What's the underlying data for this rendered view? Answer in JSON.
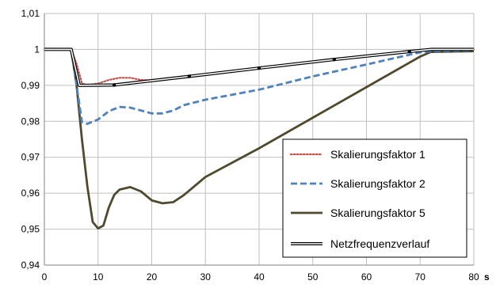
{
  "chart_data": {
    "type": "line",
    "title": "",
    "xlabel": "",
    "ylabel": "",
    "x_unit": "s",
    "xlim": [
      0,
      80
    ],
    "ylim": [
      0.94,
      1.01
    ],
    "x_ticks": [
      "0",
      "10",
      "20",
      "30",
      "40",
      "50",
      "60",
      "70",
      "80"
    ],
    "y_ticks": [
      "0,94",
      "0,95",
      "0,96",
      "0,97",
      "0,98",
      "0,99",
      "1",
      "1,01"
    ],
    "grid": true,
    "legend_position": "lower-right",
    "series": [
      {
        "name": "Skalierungsfaktor 1",
        "style": "dotted",
        "color": "#c0504d",
        "points": [
          [
            0,
            1.0
          ],
          [
            5,
            1.0
          ],
          [
            6,
            0.996
          ],
          [
            7,
            0.9905
          ],
          [
            8,
            0.9901
          ],
          [
            10,
            0.9905
          ],
          [
            12,
            0.9915
          ],
          [
            14,
            0.9921
          ],
          [
            16,
            0.9921
          ],
          [
            18,
            0.9915
          ],
          [
            20,
            0.9914
          ],
          [
            25,
            0.992
          ],
          [
            30,
            0.9932
          ],
          [
            40,
            0.995
          ],
          [
            50,
            0.9967
          ],
          [
            60,
            0.9983
          ],
          [
            70,
            0.9998
          ],
          [
            72,
            1.0
          ],
          [
            80,
            1.0
          ]
        ]
      },
      {
        "name": "Skalierungsfaktor 2",
        "style": "dashed",
        "color": "#4f81bd",
        "points": [
          [
            0,
            1.0
          ],
          [
            5,
            1.0
          ],
          [
            6,
            0.99
          ],
          [
            7,
            0.9798
          ],
          [
            8,
            0.9793
          ],
          [
            10,
            0.9805
          ],
          [
            12,
            0.9828
          ],
          [
            14,
            0.984
          ],
          [
            16,
            0.9838
          ],
          [
            18,
            0.983
          ],
          [
            20,
            0.9822
          ],
          [
            22,
            0.9822
          ],
          [
            24,
            0.983
          ],
          [
            26,
            0.9845
          ],
          [
            30,
            0.986
          ],
          [
            40,
            0.9888
          ],
          [
            50,
            0.9925
          ],
          [
            60,
            0.9958
          ],
          [
            70,
            0.9992
          ],
          [
            72,
            0.9995
          ],
          [
            80,
            0.9997
          ]
        ]
      },
      {
        "name": "Skalierungsfaktor 5",
        "style": "solid",
        "color": "#4f4a2e",
        "points": [
          [
            0,
            1.0
          ],
          [
            5,
            1.0
          ],
          [
            6,
            0.99
          ],
          [
            7,
            0.975
          ],
          [
            8,
            0.962
          ],
          [
            9,
            0.952
          ],
          [
            10,
            0.9502
          ],
          [
            11,
            0.951
          ],
          [
            12,
            0.956
          ],
          [
            13,
            0.9595
          ],
          [
            14,
            0.961
          ],
          [
            16,
            0.9617
          ],
          [
            18,
            0.9605
          ],
          [
            20,
            0.958
          ],
          [
            22,
            0.9572
          ],
          [
            24,
            0.9575
          ],
          [
            26,
            0.9595
          ],
          [
            30,
            0.9645
          ],
          [
            35,
            0.9685
          ],
          [
            40,
            0.9725
          ],
          [
            50,
            0.981
          ],
          [
            60,
            0.9895
          ],
          [
            70,
            0.998
          ],
          [
            72,
            0.9993
          ],
          [
            80,
            0.9995
          ]
        ]
      },
      {
        "name": "Netzfrequenzverlauf",
        "style": "double",
        "color": "#000000",
        "points": [
          [
            0,
            1.0
          ],
          [
            5,
            1.0
          ],
          [
            6.5,
            0.99
          ],
          [
            13,
            0.9901
          ],
          [
            27,
            0.9925
          ],
          [
            40,
            0.9948
          ],
          [
            54,
            0.9972
          ],
          [
            68,
            0.9994
          ],
          [
            72,
            1.0
          ],
          [
            80,
            1.0
          ]
        ],
        "markers_x": [
          13,
          27,
          40,
          54,
          68
        ]
      }
    ]
  }
}
